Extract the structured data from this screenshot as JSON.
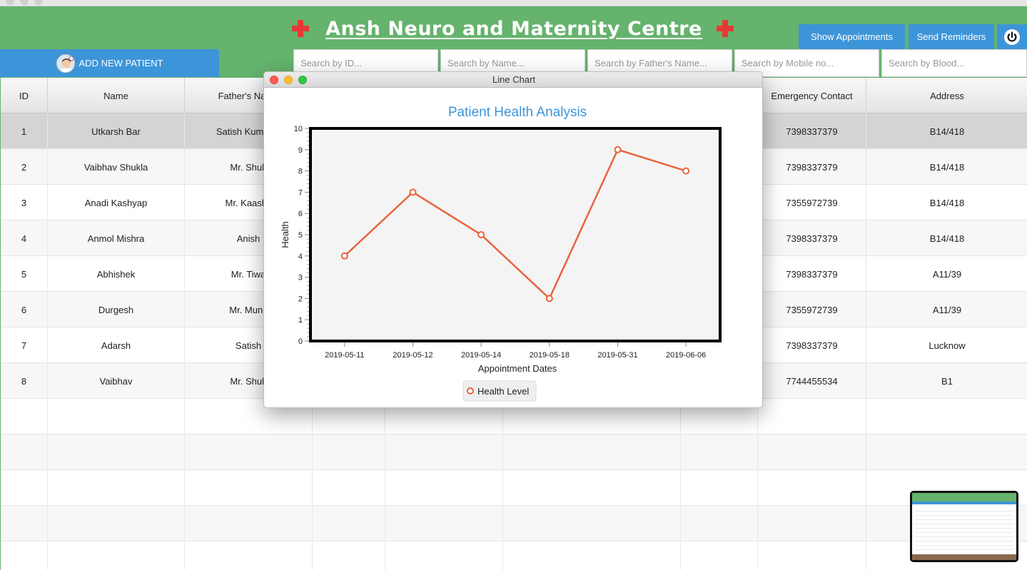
{
  "app": {
    "title": "Ansh Neuro and Maternity Centre",
    "show_appointments_label": "Show Appointments",
    "send_reminders_label": "Send Reminders",
    "add_patient_label": "ADD NEW PATIENT"
  },
  "search": {
    "id_placeholder": "Search by ID...",
    "name_placeholder": "Search by Name...",
    "father_placeholder": "Search by Father's Name...",
    "mobile_placeholder": "Search by Mobile no...",
    "blood_placeholder": "Search by Blood..."
  },
  "table": {
    "headers": {
      "id": "ID",
      "name": "Name",
      "father": "Father's Name",
      "emergency": "Emergency Contact",
      "address": "Address"
    },
    "rows": [
      {
        "id": "1",
        "name": "Utkarsh Bar",
        "father": "Satish Kumar B",
        "emergency": "7398337379",
        "address": "B14/418"
      },
      {
        "id": "2",
        "name": "Vaibhav Shukla",
        "father": "Mr. Shuk",
        "emergency": "7398337379",
        "address": "B14/418"
      },
      {
        "id": "3",
        "name": "Anadi Kashyap",
        "father": "Mr. Kaashy",
        "emergency": "7355972739",
        "address": "B14/418"
      },
      {
        "id": "4",
        "name": "Anmol Mishra",
        "father": "Anish",
        "emergency": "7398337379",
        "address": "B14/418"
      },
      {
        "id": "5",
        "name": "Abhishek",
        "father": "Mr. Tiwa",
        "emergency": "7398337379",
        "address": "A11/39"
      },
      {
        "id": "6",
        "name": "Durgesh",
        "father": "Mr. Munc",
        "emergency": "7355972739",
        "address": "A11/39"
      },
      {
        "id": "7",
        "name": "Adarsh",
        "father": "Satish",
        "emergency": "7398337379",
        "address": "Lucknow"
      },
      {
        "id": "8",
        "name": "Vaibhav",
        "father": "Mr. Shuk",
        "emergency": "7744455534",
        "address": "B1"
      }
    ]
  },
  "chart_window": {
    "title": "Line Chart"
  },
  "colors": {
    "header_green": "#65b36c",
    "button_blue": "#3d95d9",
    "line_orange": "#e8643c",
    "chart_title_blue": "#3d95d9"
  },
  "chart_data": {
    "type": "line",
    "title": "Patient Health Analysis",
    "xlabel": "Appointment Dates",
    "ylabel": "Health",
    "categories": [
      "2019-05-11",
      "2019-05-12",
      "2019-05-14",
      "2019-05-18",
      "2019-05-31",
      "2019-06-06"
    ],
    "series": [
      {
        "name": "Health Level",
        "values": [
          4,
          7,
          5,
          2,
          9,
          8
        ]
      }
    ],
    "ylim": [
      0,
      10
    ],
    "yticks": [
      "0",
      "1",
      "2",
      "3",
      "4",
      "5",
      "6",
      "7",
      "8",
      "9",
      "10"
    ],
    "grid": false,
    "legend": "bottom"
  }
}
